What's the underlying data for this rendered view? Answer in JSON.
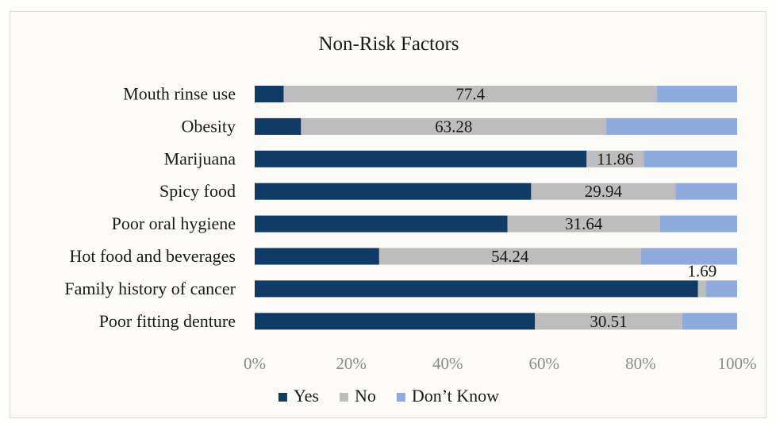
{
  "chart_data": {
    "type": "bar",
    "orientation": "horizontal",
    "stacked": "percent",
    "title": "Non-Risk Factors",
    "categories": [
      "Mouth rinse use",
      "Obesity",
      "Marijuana",
      "Spicy food",
      "Poor oral hygiene",
      "Hot food and beverages",
      "Family history of cancer",
      "Poor fitting denture"
    ],
    "series": [
      {
        "name": "Yes",
        "color": "#0f3b66",
        "values": [
          6.0,
          9.6,
          68.8,
          57.3,
          52.4,
          25.8,
          91.9,
          58.1
        ]
      },
      {
        "name": "No",
        "color": "#bdbdbd",
        "values": [
          77.4,
          63.28,
          11.86,
          29.94,
          31.64,
          54.24,
          1.69,
          30.51
        ]
      },
      {
        "name": "Don’t Know",
        "color": "#8faadc",
        "values": [
          16.6,
          27.12,
          19.34,
          12.76,
          15.96,
          19.96,
          6.41,
          11.39
        ]
      }
    ],
    "data_labels": {
      "series": "No",
      "values": [
        "77.4",
        "63.28",
        "11.86",
        "29.94",
        "31.64",
        "54.24",
        "1.69",
        "30.51"
      ]
    },
    "xlim": [
      0,
      100
    ],
    "x_ticks": [
      "0%",
      "20%",
      "40%",
      "60%",
      "80%",
      "100%"
    ],
    "xlabel": "",
    "ylabel": "",
    "grid": false,
    "legend_position": "bottom"
  }
}
